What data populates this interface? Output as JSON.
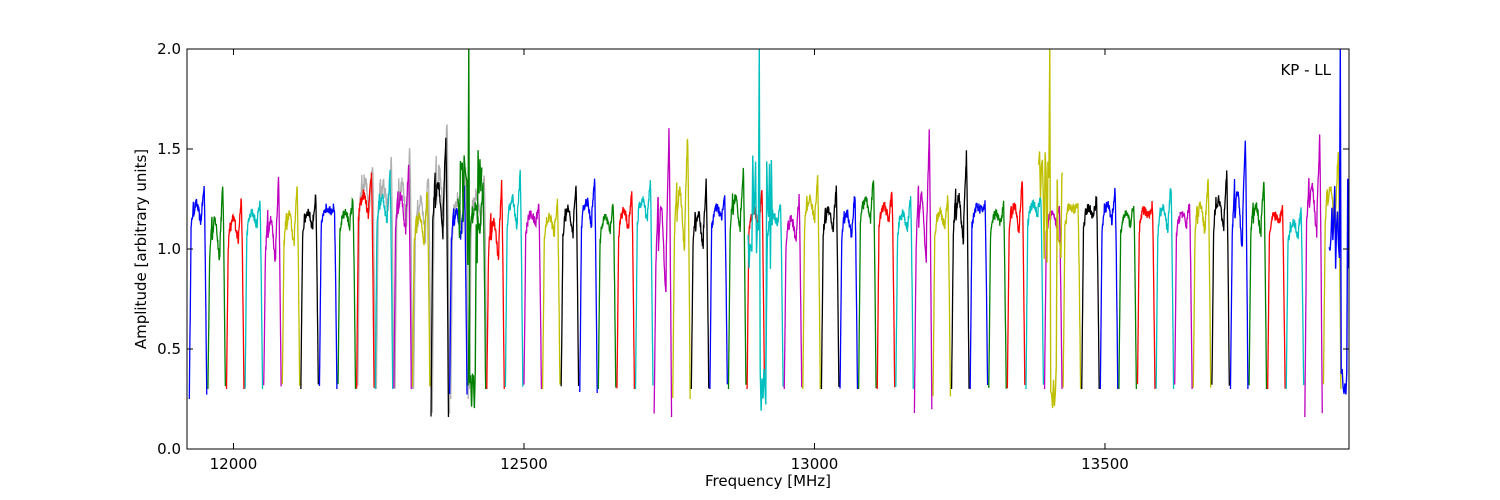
{
  "chart_data": {
    "type": "line",
    "title": "",
    "xlabel": "Frequency [MHz]",
    "ylabel": "Amplitude [arbitrary units]",
    "xlim": [
      11920,
      13920
    ],
    "ylim": [
      0.0,
      2.0
    ],
    "x_ticks": [
      12000,
      12500,
      13000,
      13500
    ],
    "x_tick_labels": [
      "12000",
      "12500",
      "13000",
      "13500"
    ],
    "y_ticks": [
      0.0,
      0.5,
      1.0,
      1.5,
      2.0
    ],
    "y_tick_labels": [
      "0.0",
      "0.5",
      "1.0",
      "1.5",
      "2.0"
    ],
    "grid": false,
    "annotation": "KP - LL",
    "color_cycle": [
      "#0000ff",
      "#008000",
      "#ff0000",
      "#00bfbf",
      "#bf00bf",
      "#bfbf00",
      "#000000"
    ],
    "channel_width_mhz": 32,
    "channel_start_mhz": 11924,
    "channel_count": 62,
    "channel_peaks": [
      1.31,
      1.32,
      1.25,
      1.24,
      1.35,
      1.32,
      1.26,
      1.21,
      1.25,
      1.37,
      1.38,
      1.42,
      1.3,
      1.57,
      1.31,
      1.32,
      1.32,
      1.38,
      1.22,
      1.24,
      1.32,
      1.35,
      1.23,
      1.28,
      1.33,
      1.58,
      1.57,
      1.33,
      1.25,
      1.4,
      1.28,
      1.22,
      1.25,
      1.35,
      1.3,
      1.28,
      1.35,
      1.28,
      1.25,
      1.58,
      1.26,
      1.47,
      1.22,
      1.22,
      1.35,
      1.27,
      1.22,
      1.22,
      1.26,
      1.3,
      1.23,
      1.22,
      1.32,
      1.23,
      1.35,
      1.38,
      1.55,
      1.35,
      1.2,
      1.2,
      1.55,
      1.5
    ],
    "channel_mids": [
      1.18,
      1.05,
      1.1,
      1.15,
      1.05,
      1.1,
      1.15,
      1.2,
      1.15,
      1.22,
      1.2,
      1.18,
      1.1,
      1.2,
      1.12,
      1.15,
      1.05,
      1.18,
      1.15,
      1.12,
      1.14,
      1.18,
      1.12,
      1.15,
      1.2,
      1.0,
      1.15,
      1.1,
      1.18,
      1.18,
      1.15,
      1.15,
      1.1,
      1.2,
      1.15,
      1.12,
      1.2,
      1.18,
      1.14,
      1.1,
      1.15,
      1.15,
      1.2,
      1.15,
      1.15,
      1.2,
      1.15,
      1.2,
      1.18,
      1.18,
      1.15,
      1.18,
      1.15,
      1.15,
      1.15,
      1.18,
      1.15,
      1.15,
      1.15,
      1.1,
      1.2,
      1.2
    ],
    "channel_mins": [
      0.25,
      0.3,
      0.3,
      0.3,
      0.3,
      0.3,
      0.3,
      0.3,
      0.3,
      0.3,
      0.3,
      0.3,
      0.3,
      0.16,
      0.25,
      0.3,
      0.3,
      0.3,
      0.3,
      0.3,
      0.3,
      0.28,
      0.3,
      0.3,
      0.3,
      0.16,
      0.25,
      0.3,
      0.3,
      0.3,
      0.3,
      0.3,
      0.3,
      0.3,
      0.3,
      0.3,
      0.3,
      0.3,
      0.3,
      0.18,
      0.25,
      0.3,
      0.3,
      0.3,
      0.3,
      0.3,
      0.3,
      0.3,
      0.3,
      0.3,
      0.3,
      0.3,
      0.3,
      0.3,
      0.3,
      0.3,
      0.3,
      0.3,
      0.3,
      0.3,
      0.16,
      0.3
    ],
    "spikes": [
      {
        "x": 12405,
        "y_max": 2.0,
        "y_min": 0.16,
        "color": "#008000"
      },
      {
        "x": 12905,
        "y_max": 2.0,
        "y_min": 0.16,
        "color": "#00bfbf"
      },
      {
        "x": 13405,
        "y_max": 2.0,
        "y_min": 0.18,
        "color": "#bfbf00"
      },
      {
        "x": 13905,
        "y_max": 2.0,
        "y_min": 0.16,
        "color": "#0000ff"
      }
    ],
    "gray_overlay_range": [
      12200,
      12420
    ],
    "gray_color": "#b0b0b0"
  }
}
